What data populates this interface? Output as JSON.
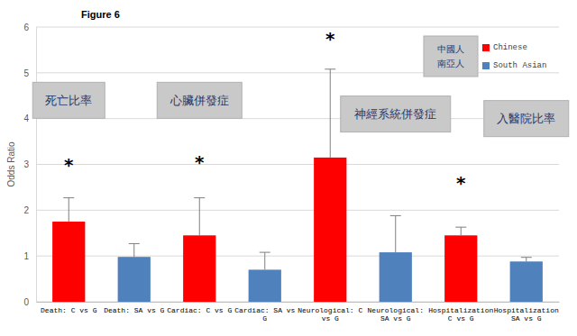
{
  "chart_data": {
    "type": "bar",
    "title": "Figure 6",
    "y_label": "Odds Ratio",
    "categories": [
      "Death: C vs G",
      "Death: SA vs G",
      "Cardiac: C vs G",
      "Cardiac: SA vs G",
      "Neurological: C vs G",
      "Neurological: SA vs G",
      "Hospitalization C vs G",
      "Hospitalization SA vs G"
    ],
    "series": [
      {
        "name": "Chinese",
        "color": "#ff0000",
        "values": [
          1.75,
          null,
          1.45,
          null,
          3.15,
          null,
          1.45,
          null
        ],
        "errors": [
          0.52,
          null,
          0.82,
          null,
          1.93,
          null,
          0.18,
          null
        ]
      },
      {
        "name": "South Asian",
        "color": "#4f81bd",
        "values": [
          null,
          0.98,
          null,
          0.7,
          null,
          1.08,
          null,
          0.88
        ],
        "errors": [
          null,
          0.29,
          null,
          0.38,
          null,
          0.8,
          null,
          0.09
        ]
      }
    ],
    "legend_notes": [
      "中國人",
      "南亞人"
    ],
    "annotations": [
      {
        "text": "*",
        "x": "Death: C vs G",
        "y": 3.0
      },
      {
        "text": "*",
        "x": "Cardiac: C vs G",
        "y": 3.05
      },
      {
        "text": "*",
        "x": "Neurological: C vs G",
        "y": 5.75
      },
      {
        "text": "*",
        "x": "Hospitalization C vs G",
        "y": 2.6
      }
    ],
    "notes": [
      {
        "text": "死亡比率",
        "x": "Death: C vs G",
        "y": 4.4
      },
      {
        "text": "心臟併發症",
        "x": "Cardiac: C vs G",
        "y": 4.4
      },
      {
        "text": "神經系統併發症",
        "x": "Neurological: SA vs G",
        "y": 4.1
      },
      {
        "text": "入醫院比率",
        "x": "Hospitalization SA vs G",
        "y": 4.0
      }
    ],
    "ylim": [
      0,
      6
    ],
    "yticks": [
      0,
      1,
      2,
      3,
      4,
      5,
      6
    ],
    "grid": true,
    "legend": "top-right"
  }
}
